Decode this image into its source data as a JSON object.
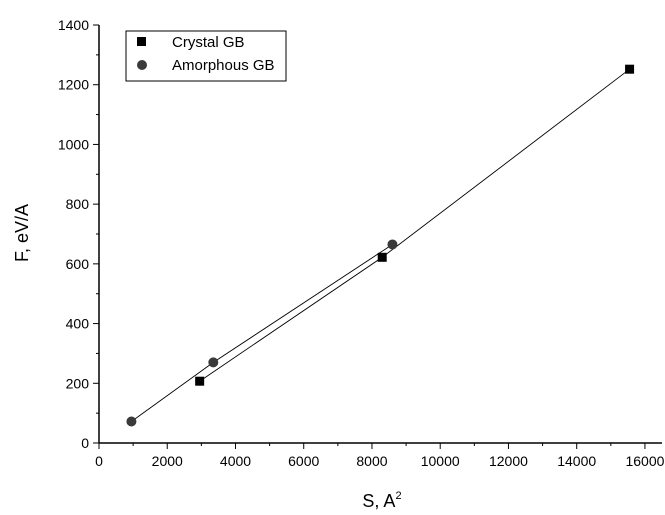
{
  "chart_data": {
    "type": "scatter",
    "xlabel": "S, A",
    "xlabel_superscript": "2",
    "ylabel": "F, eV/A",
    "xlim": [
      0,
      16500
    ],
    "ylim": [
      0,
      1400
    ],
    "xticks": [
      0,
      2000,
      4000,
      6000,
      8000,
      10000,
      12000,
      14000,
      16000
    ],
    "yticks": [
      0,
      200,
      400,
      600,
      800,
      1000,
      1200,
      1400
    ],
    "grid": false,
    "legend_position": "top-left",
    "series": [
      {
        "name": "Crystal GB",
        "marker": "square",
        "color": "#000000",
        "fit_line": true,
        "points": [
          [
            2950,
            207
          ],
          [
            8300,
            622
          ],
          [
            15550,
            1252
          ]
        ]
      },
      {
        "name": "Amorphous GB",
        "marker": "circle",
        "color": "#3a3a3a",
        "fit_line": true,
        "points": [
          [
            950,
            72
          ],
          [
            3350,
            270
          ],
          [
            8600,
            665
          ]
        ]
      }
    ]
  }
}
